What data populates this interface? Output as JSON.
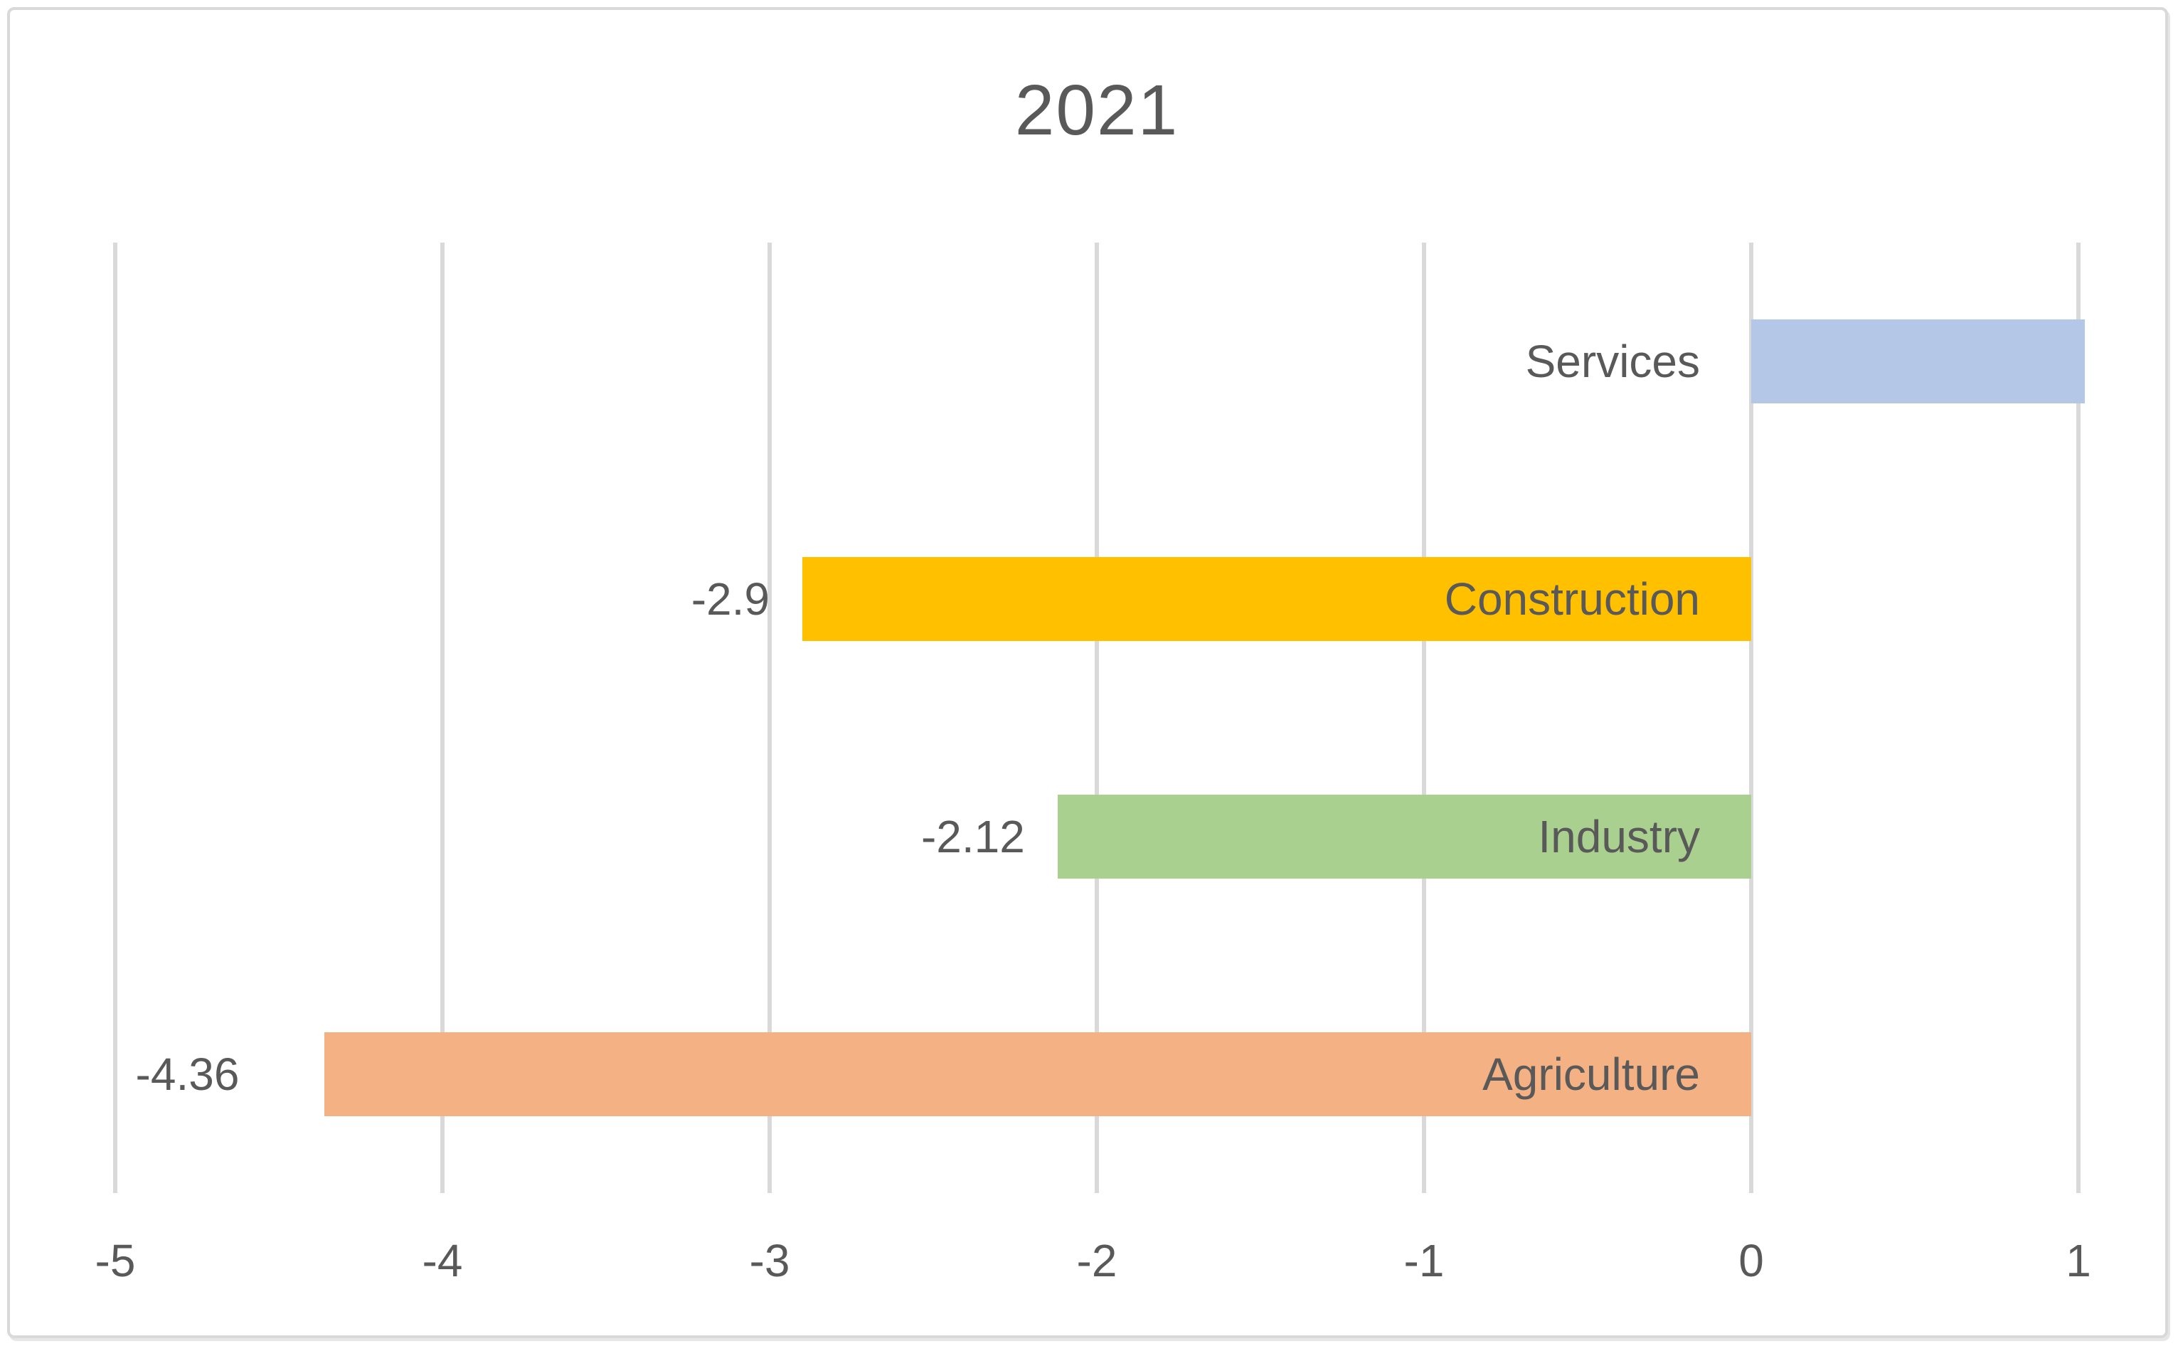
{
  "title": "2021",
  "colors": {
    "text": "#595959",
    "gridline": "#d9d9d9",
    "frame_border": "#d9d9d9",
    "background": "#ffffff"
  },
  "chart_data": {
    "type": "bar",
    "orientation": "horizontal",
    "title": "2021",
    "categories": [
      "Services",
      "Construction",
      "Industry",
      "Agriculture"
    ],
    "values": [
      1.02,
      -2.9,
      -2.12,
      -4.36
    ],
    "data_labels": [
      "",
      "-2.9",
      "-2.12",
      "-4.36"
    ],
    "bar_colors": [
      "#b4c7e7",
      "#ffc000",
      "#a9d08e",
      "#f4b183"
    ],
    "xlabel": "",
    "ylabel": "",
    "xlim": [
      -5,
      1
    ],
    "xticks": [
      -5,
      -4,
      -3,
      -2,
      -1,
      0,
      1
    ],
    "xtick_labels": [
      "-5",
      "-4",
      "-3",
      "-2",
      "-1",
      "0",
      "1"
    ],
    "grid": true,
    "legend": false,
    "category_labels_position": "inside-end-near-zero-axis",
    "value_labels_position": "outside-negative-end"
  }
}
